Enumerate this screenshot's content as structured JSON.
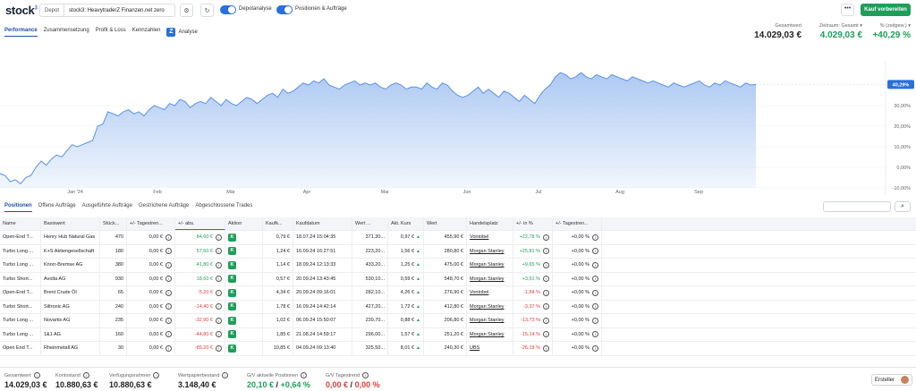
{
  "header": {
    "logo": "stock",
    "logo_sup": "3",
    "depot_label": "Depot",
    "depot_value": "stock3: HeavytraderZ Finanzen.net zero",
    "toggle1_label": "Depotanalyse",
    "toggle2_label": "Positionen & Aufträge",
    "more_label": "•••",
    "kauf_label": "Kauf vorbereiten"
  },
  "tabs": [
    "Performance",
    "Zusammensetzung",
    "Profit & Loss",
    "Kennzahlen",
    "Analyse"
  ],
  "summary": {
    "gesamtwert_label": "Gesamtwert",
    "gesamtwert_value": "14.029,03 €",
    "zeitraum_label": "Zeitraum: Gesamt",
    "zeitraum_value": "4.029,03 €",
    "pct_label": "% (zeitgew.)",
    "pct_value": "+40,29 %"
  },
  "chart_data": {
    "type": "area",
    "x_tick_labels": [
      "Jan '24",
      "Feb",
      "Mär",
      "Apr",
      "Mai",
      "Jun",
      "Jul",
      "Aug",
      "Sep"
    ],
    "y_tick_labels": [
      "40,29%",
      "30,00%",
      "20,00%",
      "10,00%",
      "0,00%",
      "-10,00%"
    ],
    "ylim": [
      -10,
      50
    ],
    "current_label": "40,29%",
    "series": [
      {
        "values": [
          -3,
          -4,
          -7,
          -6,
          -8,
          -5,
          -4,
          0,
          3,
          1,
          4,
          6,
          5,
          8,
          11,
          10,
          11,
          12,
          13,
          20,
          21,
          27,
          26,
          25,
          27,
          28,
          26,
          27,
          25,
          28,
          30,
          29,
          28,
          31,
          30,
          33,
          32,
          29,
          31,
          32,
          31,
          34,
          32,
          30,
          33,
          31,
          30,
          32,
          34,
          33,
          31,
          33,
          35,
          36,
          34,
          38,
          36,
          37,
          39,
          41,
          40,
          42,
          41,
          43,
          40,
          39,
          38,
          40,
          41,
          42,
          40,
          41,
          40,
          41,
          39,
          38,
          40,
          41,
          40,
          38,
          39,
          39,
          38,
          41,
          39,
          38,
          41,
          40,
          37,
          35,
          34,
          35,
          37,
          39,
          36,
          38,
          36,
          34,
          37,
          36,
          34,
          32,
          35,
          33,
          31,
          35,
          38,
          40,
          44,
          46,
          45,
          43,
          44,
          46,
          44,
          43,
          45,
          44,
          43,
          45,
          44,
          43,
          42,
          44,
          43,
          42,
          41,
          42,
          41,
          40,
          39,
          41,
          40,
          39,
          40,
          41,
          42,
          40,
          39,
          41,
          40,
          42,
          41,
          40,
          39,
          41,
          40,
          40.29
        ]
      }
    ]
  },
  "subtabs": [
    "Positionen",
    "Offene Aufträge",
    "Ausgeführte Aufträge",
    "Gestrichene Aufträge",
    "Abgeschlossene Trades"
  ],
  "table": {
    "columns": [
      "Name",
      "Basiswert",
      "Stück...",
      "+/- Tagestren...",
      "+/- abs.",
      "Aktion",
      "Kaufk...",
      "Kaufdatum",
      "Wert ...",
      "Akt. Kurs",
      "Wert",
      "Handelsplatz",
      "+/- in %",
      "+/- Tagestren..."
    ],
    "action_label": "K",
    "rows": [
      {
        "name": "Open-End T...",
        "basis": "Henry Hub Natural Gas",
        "stueck": "470",
        "tag": "0,00 €",
        "abs": "84,60 €",
        "abs_color": "green",
        "kauf": "0,79 €",
        "datum": "18.07.24 15:04:35",
        "wert1": "371,30...",
        "kurs": "0,97 €",
        "kurs_dir": "up",
        "wert": "455,90 €",
        "platz": "Vontobel",
        "pct": "+22,78 %",
        "pct_color": "green",
        "tag2": "+0,00 %"
      },
      {
        "name": "Turbo Long ...",
        "basis": "K+S Aktiengesellschaft",
        "stueck": "180",
        "tag": "0,00 €",
        "abs": "57,60 €",
        "abs_color": "green",
        "kauf": "1,24 €",
        "datum": "16.09.24 16:27:51",
        "wert1": "223,20...",
        "kurs": "1,56 €",
        "kurs_dir": "up",
        "wert": "280,80 €",
        "platz": "Morgan Stanley",
        "pct": "+25,81 %",
        "pct_color": "green",
        "tag2": "+0,00 %"
      },
      {
        "name": "Turbo Long ...",
        "basis": "Knorr-Bremse AG",
        "stueck": "380",
        "tag": "0,00 €",
        "abs": "41,80 €",
        "abs_color": "green",
        "kauf": "1,14 €",
        "datum": "18.09.24 12:13:33",
        "wert1": "433,20...",
        "kurs": "1,25 €",
        "kurs_dir": "up",
        "wert": "475,00 €",
        "platz": "Morgan Stanley",
        "pct": "+9,65 %",
        "pct_color": "green",
        "tag2": "+0,00 %"
      },
      {
        "name": "Turbo Short...",
        "basis": "Avolta AG",
        "stueck": "930",
        "tag": "0,00 €",
        "abs": "18,60 €",
        "abs_color": "green",
        "kauf": "0,57 €",
        "datum": "20.09.24 13:43:45",
        "wert1": "530,10...",
        "kurs": "0,59 €",
        "kurs_dir": "up",
        "wert": "548,70 €",
        "platz": "Morgan Stanley",
        "pct": "+3,51 %",
        "pct_color": "green",
        "tag2": "+0,00 %"
      },
      {
        "name": "Open-End T...",
        "basis": "Brent Crude Öl",
        "stueck": "65",
        "tag": "0,00 €",
        "abs": "-5,20 €",
        "abs_color": "red",
        "kauf": "4,34 €",
        "datum": "20.09.24 09:16:01",
        "wert1": "282,10...",
        "kurs": "4,26 €",
        "kurs_dir": "up",
        "wert": "276,90 €",
        "platz": "Vontobel",
        "pct": "-1,84 %",
        "pct_color": "red",
        "tag2": "+0,00 %"
      },
      {
        "name": "Turbo Short...",
        "basis": "Siltronic AG",
        "stueck": "240",
        "tag": "0,00 €",
        "abs": "-14,40 €",
        "abs_color": "red",
        "kauf": "1,78 €",
        "datum": "16.09.24 14:42:14",
        "wert1": "427,20...",
        "kurs": "1,72 €",
        "kurs_dir": "up",
        "wert": "412,80 €",
        "platz": "Morgan Stanley",
        "pct": "-3,37 %",
        "pct_color": "red",
        "tag2": "+0,00 %"
      },
      {
        "name": "Turbo Long ...",
        "basis": "Novartis AG",
        "stueck": "235",
        "tag": "0,00 €",
        "abs": "-32,90 €",
        "abs_color": "red",
        "kauf": "1,02 €",
        "datum": "06.09.24 15:50:07",
        "wert1": "239,70...",
        "kurs": "0,88 €",
        "kurs_dir": "up",
        "wert": "206,80 €",
        "platz": "Morgan Stanley",
        "pct": "-13,73 %",
        "pct_color": "red",
        "tag2": "+0,00 %"
      },
      {
        "name": "Turbo Long ...",
        "basis": "1&1 AG",
        "stueck": "160",
        "tag": "0,00 €",
        "abs": "-44,80 €",
        "abs_color": "red",
        "kauf": "1,85 €",
        "datum": "21.08.24 14:59:17",
        "wert1": "296,00...",
        "kurs": "1,57 €",
        "kurs_dir": "up",
        "wert": "251,20 €",
        "platz": "Morgan Stanley",
        "pct": "-15,14 %",
        "pct_color": "red",
        "tag2": "+0,00 %"
      },
      {
        "name": "Open End T...",
        "basis": "Rheinmetall AG",
        "stueck": "30",
        "tag": "0,00 €",
        "abs": "-85,20 €",
        "abs_color": "red",
        "kauf": "10,85 €",
        "datum": "04.09.24 09:13:40",
        "wert1": "325,50...",
        "kurs": "8,01 €",
        "kurs_dir": "up",
        "wert": "240,30 €",
        "platz": "UBS",
        "pct": "-26,18 %",
        "pct_color": "red",
        "tag2": "+0,00 %"
      }
    ]
  },
  "footer": {
    "gesamtwert_label": "Gesamtwert",
    "gesamtwert_value": "14.029,03 €",
    "konto_label": "Kontostand",
    "konto_value": "10.880,63 €",
    "verf_label": "Verfügungsrahmen",
    "verf_value": "10.880,63 €",
    "wp_label": "Wertpapierbestand",
    "wp_value": "3.148,40 €",
    "gv_label": "G/V aktuelle Positionen",
    "gv_value1": "20,10 €",
    "gv_sep": "/",
    "gv_value2": "+0,64 %",
    "gvt_label": "G/V Tagestrend",
    "gvt_value1": "0,00 €",
    "gvt_sep": "/",
    "gvt_value2": "0,00 %",
    "ersteller_label": "Ersteller"
  },
  "colors": {
    "accent": "#2a6fdb",
    "positive": "#1e9e5a",
    "negative": "#e03a3a",
    "chart_fill": "#a9c6f2",
    "chart_line": "#5b93e6"
  }
}
